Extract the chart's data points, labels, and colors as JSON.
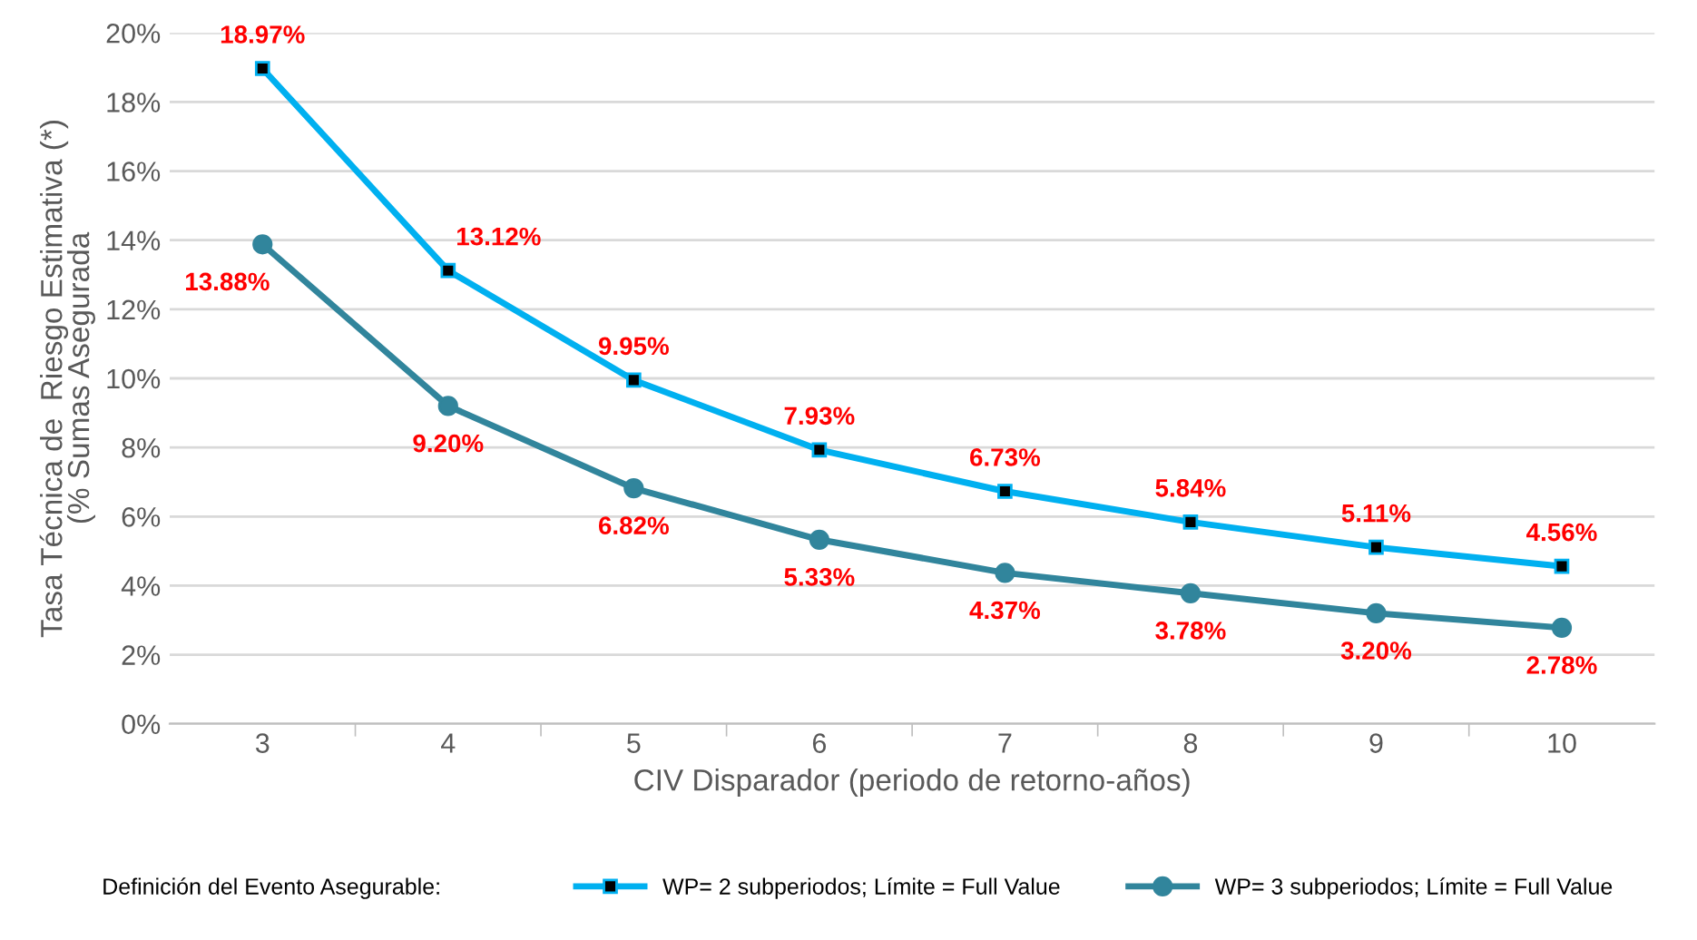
{
  "chart_data": {
    "type": "line",
    "xlabel": "CIV Disparador (periodo de retorno-años)",
    "ylabel": "Tasa Técnica de  Riesgo Estimativa (*)\n(% Sumas Asegurada",
    "categories": [
      "3",
      "4",
      "5",
      "6",
      "7",
      "8",
      "9",
      "10"
    ],
    "ylim": [
      0,
      20
    ],
    "yticks": [
      {
        "value": 0,
        "label": "0%"
      },
      {
        "value": 2,
        "label": "2%"
      },
      {
        "value": 4,
        "label": "4%"
      },
      {
        "value": 6,
        "label": "6%"
      },
      {
        "value": 8,
        "label": "8%"
      },
      {
        "value": 10,
        "label": "10%"
      },
      {
        "value": 12,
        "label": "12%"
      },
      {
        "value": 14,
        "label": "14%"
      },
      {
        "value": 16,
        "label": "16%"
      },
      {
        "value": 18,
        "label": "18%"
      },
      {
        "value": 20,
        "label": "20%"
      }
    ],
    "grid": "y",
    "legend": "bottom",
    "legend_title": "Definición del Evento Asegurable:",
    "series": [
      {
        "name": "WP= 2 subperiodos; Límite = Full Value",
        "color": "#00b0f0",
        "marker": "square",
        "values": [
          18.97,
          13.12,
          9.95,
          7.93,
          6.73,
          5.84,
          5.11,
          4.56
        ],
        "value_labels": [
          "18.97%",
          "13.12%",
          "9.95%",
          "7.93%",
          "6.73%",
          "5.84%",
          "5.11%",
          "4.56%"
        ]
      },
      {
        "name": "WP= 3 subperiodos; Límite = Full Value",
        "color": "#31859c",
        "marker": "circle",
        "values": [
          13.88,
          9.2,
          6.82,
          5.33,
          4.37,
          3.78,
          3.2,
          2.78
        ],
        "value_labels": [
          "13.88%",
          "9.20%",
          "6.82%",
          "5.33%",
          "4.37%",
          "3.78%",
          "3.20%",
          "2.78%"
        ]
      }
    ]
  }
}
